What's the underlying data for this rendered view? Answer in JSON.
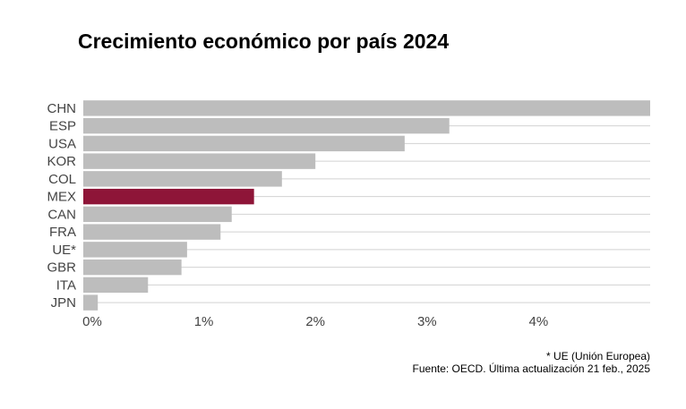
{
  "title": "Crecimiento económico por país 2024",
  "notes": {
    "footnote": "* UE (Unión Europea)",
    "source": "Fuente: OECD. Última actualización 21 feb., 2025"
  },
  "colors": {
    "bar": "#bdbdbd",
    "highlight": "#8e1538",
    "grid": "#d2d2d2",
    "tick_text": "#444444"
  },
  "chart_data": {
    "type": "bar",
    "orientation": "horizontal",
    "title": "Crecimiento económico por país 2024",
    "categories": [
      "CHN",
      "ESP",
      "USA",
      "KOR",
      "COL",
      "MEX",
      "CAN",
      "FRA",
      "UE*",
      "GBR",
      "ITA",
      "JPN"
    ],
    "values": [
      5.0,
      3.2,
      2.8,
      2.0,
      1.7,
      1.45,
      1.25,
      1.15,
      0.85,
      0.8,
      0.5,
      0.05
    ],
    "highlight": "MEX",
    "xlim": [
      -0.08,
      5.0
    ],
    "xticks": [
      0,
      1,
      2,
      3,
      4
    ],
    "xtick_labels": [
      "0%",
      "1%",
      "2%",
      "3%",
      "4%"
    ],
    "xlabel": "",
    "ylabel": "",
    "grid": "horizontal"
  }
}
